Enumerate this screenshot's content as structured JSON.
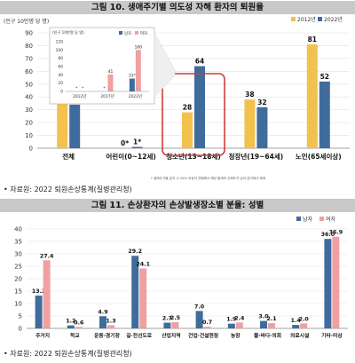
{
  "figure10": {
    "title": "그림 10. 생애주기별 의도성 자해 환자의 퇴원율",
    "unit": "(인구 10만명 당 명)",
    "source": "• 자료원: 2022 퇴원손상통계(질병관리청)",
    "footnote": "* 생애주기별 분석 시 20% 이상의 연령에서 해당 통계의 신뢰도가 낮아 분석에서 제외",
    "colors": {
      "2012": "#f2c14e",
      "2022": "#3f6c9c"
    }
  },
  "figure11": {
    "title": "그림 11. 손상환자의 손상발생장소별 분율: 성별",
    "source": "• 자료원: 2022 퇴원손상통계(질병관리청)",
    "colors": {
      "male": "#3f6c9c",
      "female": "#f0a0a0"
    }
  },
  "chart_data": [
    {
      "type": "bar",
      "ylabel": "(인구 10만명 당 명)",
      "ylim": [
        0,
        90
      ],
      "yticks": [
        0,
        10,
        20,
        30,
        40,
        50,
        60,
        70,
        80,
        90
      ],
      "categories": [
        "전체",
        "어린이(0~12세)",
        "청소년(13~18세)",
        "청장년(19~64세)",
        "노인(65세이상)"
      ],
      "series": [
        {
          "name": "2012년",
          "values": [
            37,
            0,
            28,
            38,
            81
          ],
          "labels": [
            "37",
            "0*",
            "28",
            "38",
            "81"
          ]
        },
        {
          "name": "2022년",
          "values": [
            34,
            1,
            64,
            32,
            52
          ],
          "labels": [
            "34",
            "1*",
            "64",
            "32",
            "52"
          ]
        }
      ],
      "highlight": "청소년(13~18세)",
      "inset": {
        "ylim": [
          0,
          120
        ],
        "yticks": [
          0,
          20,
          40,
          60,
          80,
          100,
          120
        ],
        "ylabel": "(인구 10만명 당 명)",
        "categories": [
          "2012년",
          "2017년",
          "2022년"
        ],
        "legend": [
          "남자",
          "여자"
        ],
        "series": [
          {
            "name": "남자",
            "values": [
              0,
              0,
              31
            ],
            "labels": [
              "*",
              "*",
              "31*"
            ]
          },
          {
            "name": "여자",
            "values": [
              0,
              41,
              100
            ],
            "labels": [
              "*",
              "41",
              "100"
            ]
          }
        ]
      }
    },
    {
      "type": "bar",
      "ylim": [
        0,
        40
      ],
      "yticks": [
        0,
        5,
        10,
        15,
        20,
        25,
        30,
        35,
        40
      ],
      "categories": [
        "주거지",
        "학교",
        "운동·경기장",
        "길·전선도로",
        "산업지역",
        "건업·건설현장",
        "농장",
        "물·바다·의회",
        "의료시설",
        "기타·미상"
      ],
      "series": [
        {
          "name": "남자",
          "values": [
            13.2,
            1.2,
            4.9,
            29.2,
            2.3,
            7.0,
            1.9,
            3.0,
            1.4,
            36.0
          ]
        },
        {
          "name": "여자",
          "values": [
            27.4,
            0.6,
            1.3,
            24.1,
            2.5,
            0.7,
            2.4,
            2.1,
            2.0,
            36.9
          ]
        }
      ]
    }
  ]
}
